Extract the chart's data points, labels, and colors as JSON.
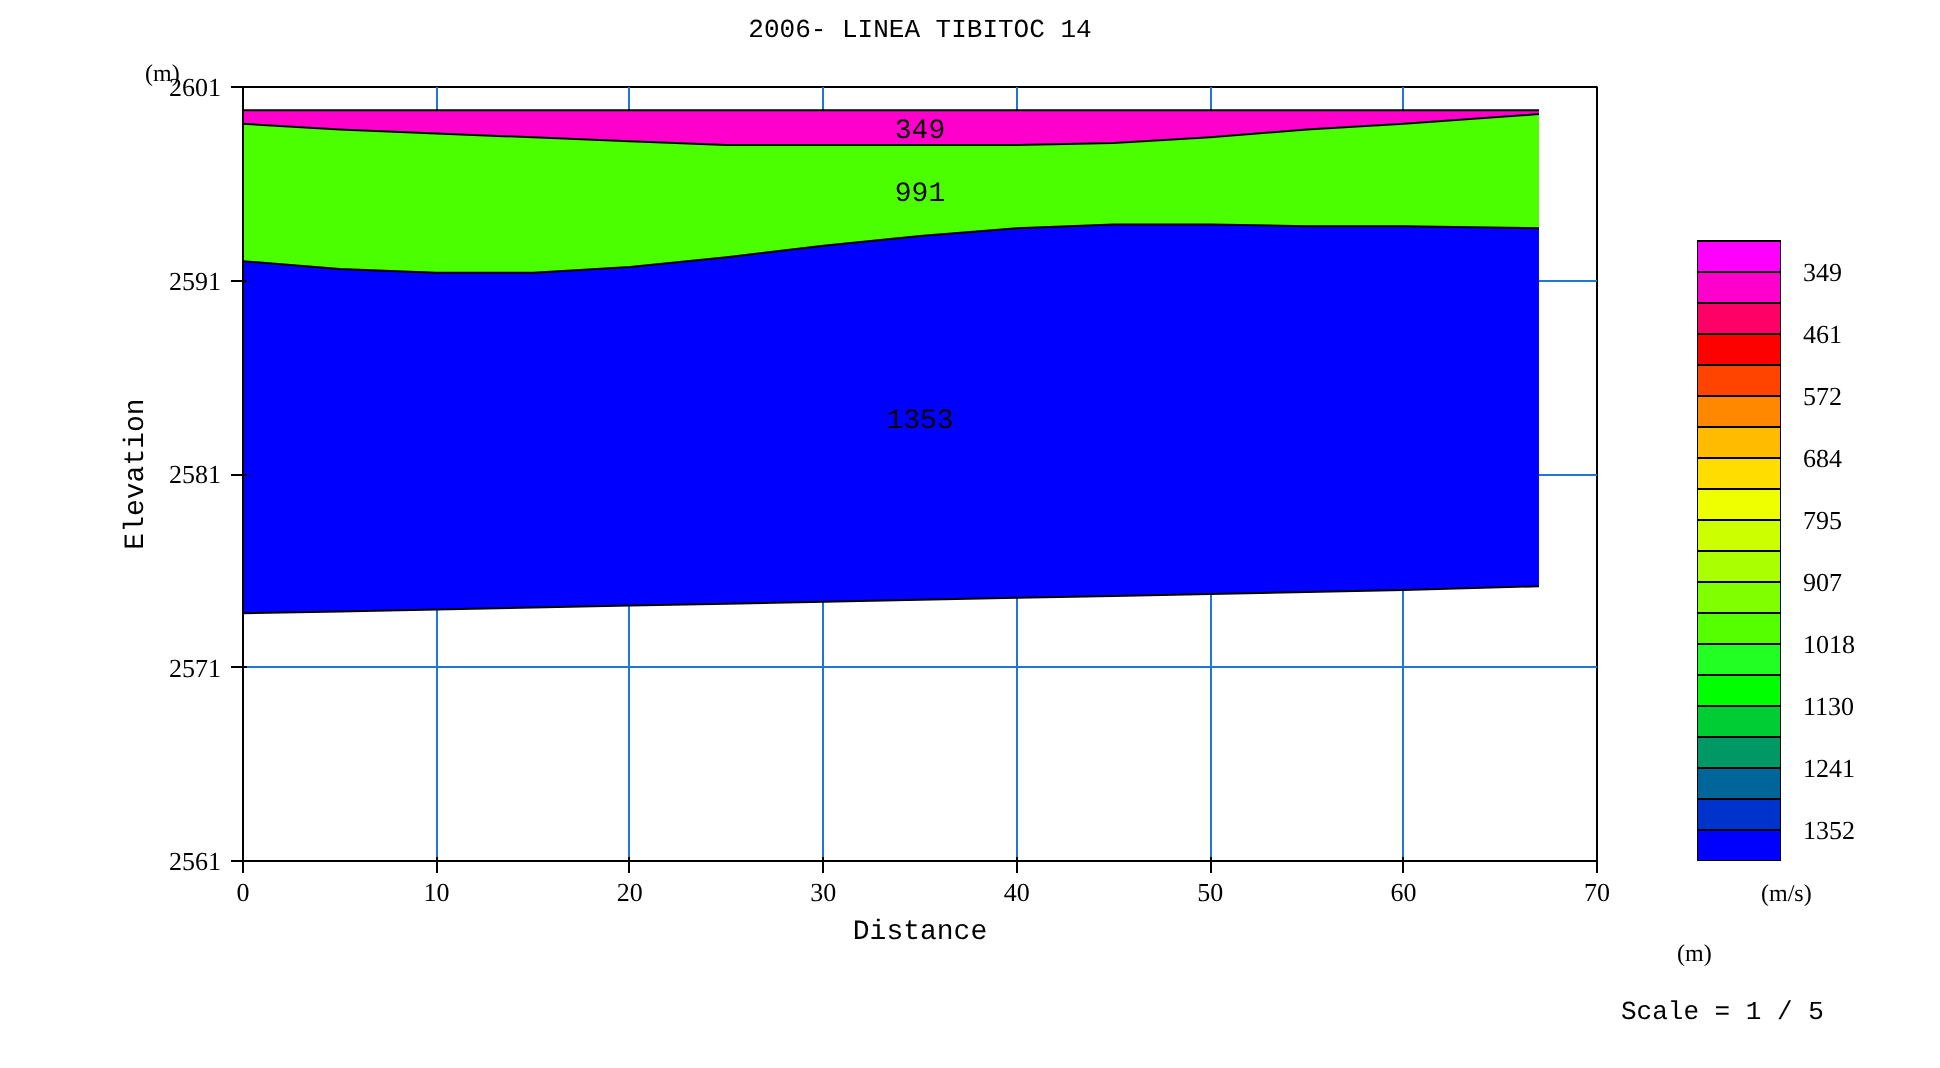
{
  "chart_data": {
    "type": "area",
    "title": "2006- LINEA TIBITOC 14",
    "xlabel": "Distance",
    "ylabel": "Elevation",
    "clabel": "(m/s)",
    "x": [
      0,
      5,
      10,
      15,
      20,
      25,
      30,
      35,
      40,
      45,
      50,
      55,
      60,
      67
    ],
    "series": [
      {
        "name": "349",
        "color": "#ff00cc",
        "values": [
          2599.8,
          2599.8,
          2599.8,
          2599.8,
          2599.8,
          2599.8,
          2599.8,
          2599.8,
          2599.8,
          2599.8,
          2599.8,
          2599.8,
          2599.8,
          2599.8
        ]
      },
      {
        "name": "991",
        "color": "#4cff00",
        "values": [
          2599.1,
          2598.8,
          2598.6,
          2598.4,
          2598.2,
          2598.0,
          2598.0,
          2598.0,
          2598.0,
          2598.1,
          2598.4,
          2598.8,
          2599.1,
          2599.6
        ]
      },
      {
        "name": "1353",
        "color": "#0000ff",
        "values": [
          2592.0,
          2591.6,
          2591.4,
          2591.4,
          2591.7,
          2592.2,
          2592.8,
          2593.3,
          2593.7,
          2593.9,
          2593.9,
          2593.8,
          2593.8,
          2593.7
        ]
      },
      {
        "type": "line",
        "color": "#000000",
        "values": [
          2573.8,
          2573.9,
          2574.0,
          2574.1,
          2574.2,
          2574.3,
          2574.4,
          2574.5,
          2574.6,
          2574.7,
          2574.8,
          2574.9,
          2575.0,
          2575.2
        ]
      }
    ],
    "xlim": [
      0,
      70
    ],
    "ylim": [
      2561,
      2601
    ],
    "xticks": [
      0,
      10,
      20,
      30,
      40,
      50,
      60,
      70
    ],
    "yticks": [
      2561,
      2571,
      2581,
      2591,
      2601
    ],
    "grid": true,
    "clim": [
      293,
      1408
    ],
    "cticks": [
      349,
      461,
      572,
      684,
      795,
      907,
      1018,
      1130,
      1241,
      1352
    ],
    "colors": [
      "#ff00ff",
      "#ff00cc",
      "#ff0066",
      "#ff0000",
      "#ff4400",
      "#ff8800",
      "#ffbb00",
      "#ffdd00",
      "#f0ff00",
      "#ccff00",
      "#aaff00",
      "#80ff00",
      "#55ff00",
      "#22ff22",
      "#00ff00",
      "#00cc33",
      "#009966",
      "#006699",
      "#0033cc",
      "#0000ff"
    ],
    "annotations": [
      "(m)",
      "(m)",
      "Scale = 1 / 5"
    ]
  }
}
